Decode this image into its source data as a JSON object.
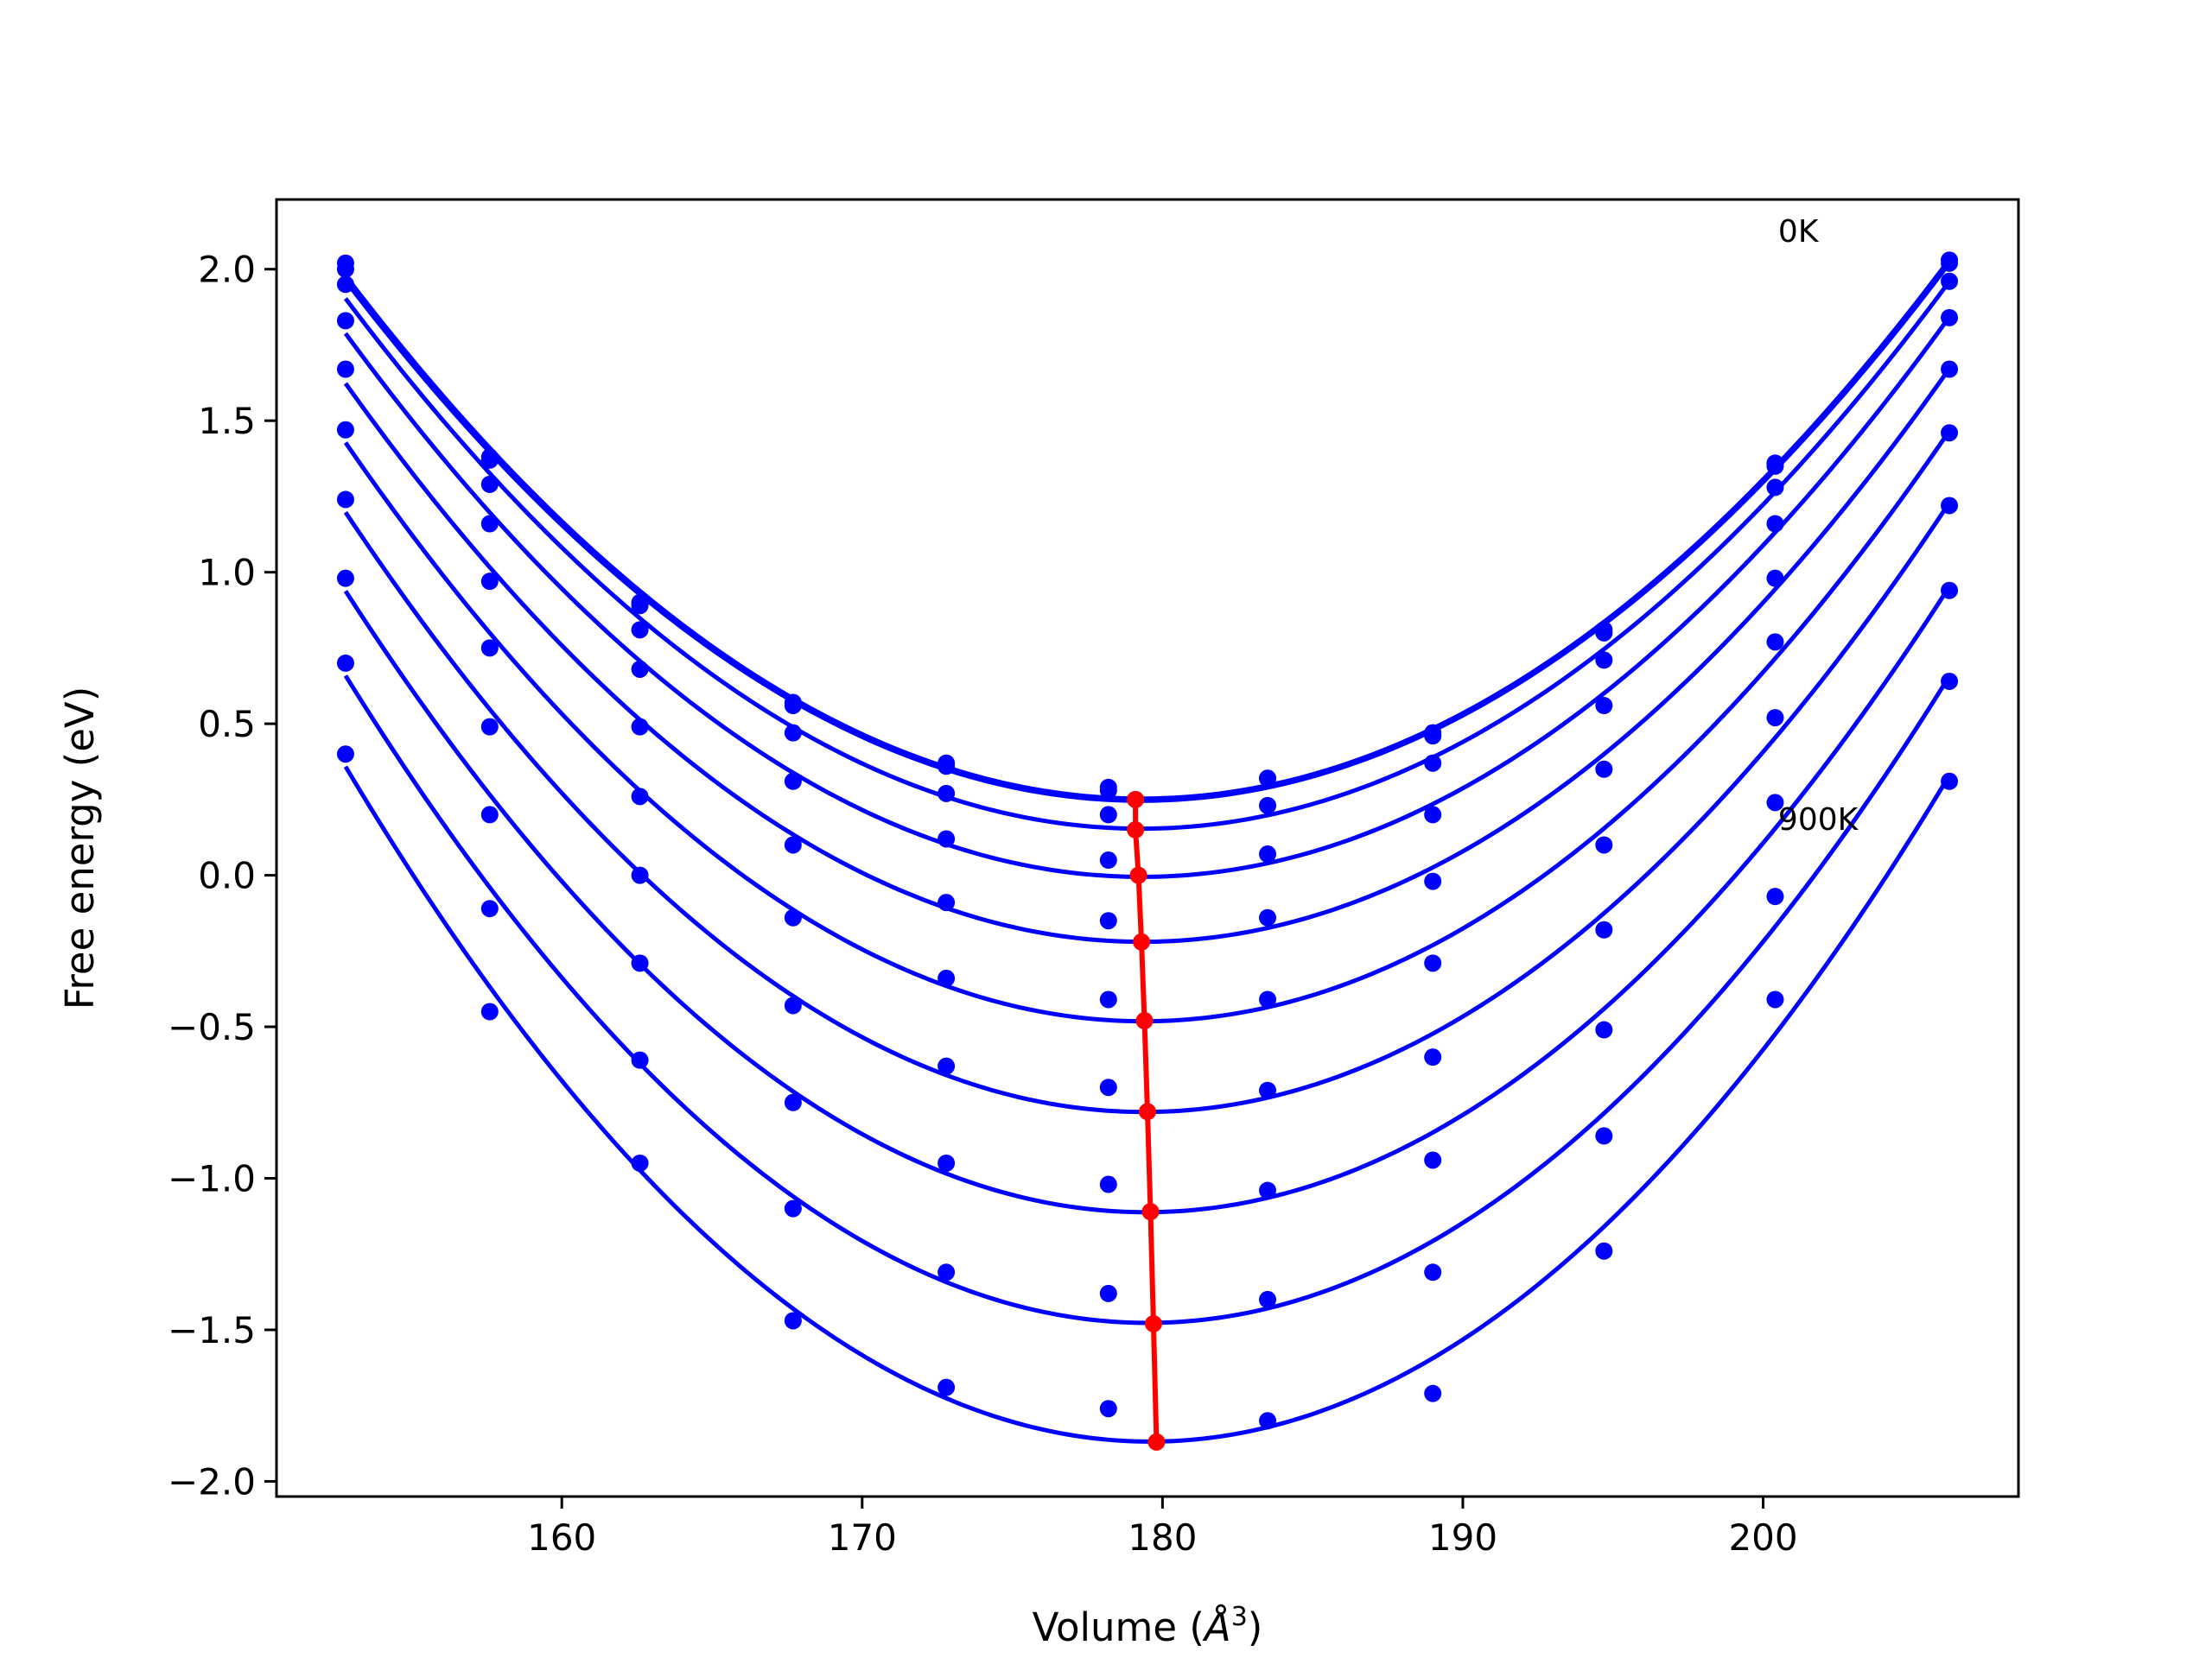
{
  "chart_data": {
    "type": "line",
    "xlabel_prefix": "Volume (",
    "xlabel_unit": "Å",
    "xlabel_exp": "3",
    "xlabel_suffix": ")",
    "ylabel": "Free energy (eV)",
    "xlim": [
      150.5,
      208.5
    ],
    "ylim": [
      -2.05,
      2.23
    ],
    "xticks": [
      160,
      170,
      180,
      190,
      200
    ],
    "yticks": [
      2.0,
      1.5,
      1.0,
      0.5,
      0.0,
      -0.5,
      -1.0,
      -1.5,
      -2.0
    ],
    "ytick_labels": [
      "2.0",
      "1.5",
      "1.0",
      "0.5",
      "0.0",
      "−0.5",
      "−1.0",
      "−1.5",
      "−2.0"
    ],
    "grid": false,
    "annotations": [
      {
        "text": "0K",
        "x": 200.5,
        "y": 2.09
      },
      {
        "text": "900K",
        "x": 200.5,
        "y": 0.15
      }
    ],
    "volumes": [
      152.8,
      157.6,
      162.6,
      167.7,
      172.8,
      178.2,
      183.5,
      189.0,
      194.7,
      200.4,
      206.2
    ],
    "series": [
      {
        "values": [
          2.02,
          1.38,
          0.9,
          0.57,
          0.37,
          0.29,
          0.32,
          0.47,
          0.81,
          1.36,
          2.03
        ]
      },
      {
        "values": [
          2.0,
          1.37,
          0.89,
          0.56,
          0.36,
          0.28,
          0.32,
          0.46,
          0.8,
          1.35,
          2.02
        ]
      },
      {
        "values": [
          1.95,
          1.29,
          0.81,
          0.47,
          0.27,
          0.2,
          0.23,
          0.37,
          0.71,
          1.28,
          1.96
        ]
      },
      {
        "values": [
          1.83,
          1.16,
          0.68,
          0.31,
          0.12,
          0.05,
          0.07,
          0.2,
          0.56,
          1.16,
          1.84
        ]
      },
      {
        "values": [
          1.67,
          0.97,
          0.49,
          0.1,
          -0.09,
          -0.15,
          -0.14,
          -0.02,
          0.35,
          0.98,
          1.67
        ]
      },
      {
        "values": [
          1.47,
          0.75,
          0.26,
          -0.14,
          -0.34,
          -0.41,
          -0.41,
          -0.29,
          0.1,
          0.77,
          1.46
        ]
      },
      {
        "values": [
          1.24,
          0.49,
          0.0,
          -0.43,
          -0.63,
          -0.7,
          -0.71,
          -0.6,
          -0.18,
          0.52,
          1.22
        ]
      },
      {
        "values": [
          0.98,
          0.2,
          -0.29,
          -0.75,
          -0.95,
          -1.02,
          -1.04,
          -0.94,
          -0.51,
          0.24,
          0.94
        ]
      },
      {
        "values": [
          0.7,
          -0.11,
          -0.61,
          -1.1,
          -1.31,
          -1.38,
          -1.4,
          -1.31,
          -0.86,
          -0.07,
          0.64
        ]
      },
      {
        "values": [
          0.4,
          -0.45,
          -0.95,
          -1.47,
          -1.69,
          -1.76,
          -1.8,
          -1.71,
          -1.24,
          -0.41,
          0.31
        ]
      }
    ],
    "equilibrium": {
      "x": [
        179.1,
        179.1,
        179.2,
        179.3,
        179.4,
        179.5,
        179.6,
        179.7,
        179.8
      ],
      "y": [
        0.25,
        0.15,
        0.0,
        -0.22,
        -0.48,
        -0.78,
        -1.11,
        -1.48,
        -1.87
      ]
    },
    "colors": {
      "curve": "#0000ff",
      "points": "#0000ff",
      "equilibrium": "#ff0000",
      "axes": "#000000"
    }
  }
}
